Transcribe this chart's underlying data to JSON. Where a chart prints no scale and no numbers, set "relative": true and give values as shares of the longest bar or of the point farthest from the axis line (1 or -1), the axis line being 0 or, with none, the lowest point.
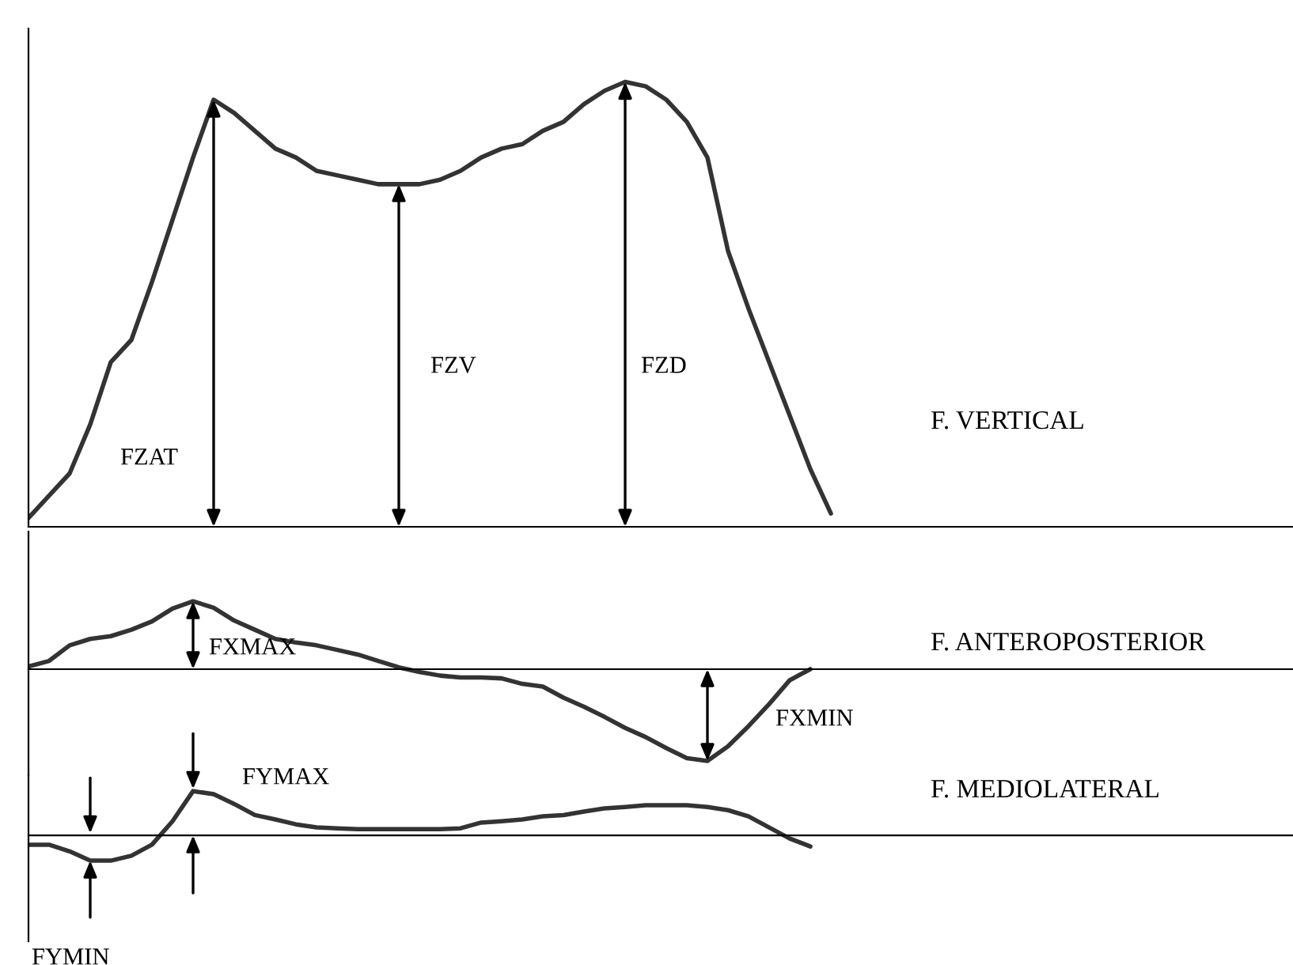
{
  "chart_data": [
    {
      "type": "line",
      "relative": true,
      "ylabel": "F. VERTICAL",
      "annotations": [
        "FZAT",
        "FZV",
        "FZD"
      ],
      "categories": [
        null,
        null,
        null,
        null,
        null,
        null,
        null,
        null,
        null,
        null,
        null,
        null,
        null,
        null,
        null,
        null,
        null,
        null,
        null,
        null,
        null,
        null,
        null,
        null,
        null,
        null,
        null,
        null,
        null,
        null,
        null,
        null,
        null,
        null,
        null,
        null,
        null,
        null,
        null,
        null
      ],
      "series": [
        {
          "color": "#333333",
          "values": [
            0.02,
            0.07,
            0.12,
            0.23,
            0.37,
            0.42,
            0.55,
            0.69,
            0.83,
            0.96,
            0.93,
            0.89,
            0.85,
            0.83,
            0.8,
            0.79,
            0.78,
            0.77,
            0.77,
            0.77,
            0.78,
            0.8,
            0.83,
            0.85,
            0.86,
            0.89,
            0.91,
            0.95,
            0.98,
            1.0,
            0.99,
            0.96,
            0.91,
            0.83,
            0.62,
            0.49,
            0.37,
            0.25,
            0.13,
            0.03
          ]
        }
      ]
    },
    {
      "type": "line",
      "relative": true,
      "ylabel": "F. ANTEROPOSTERIOR",
      "annotations": [
        "FXMAX",
        "FXMIN"
      ],
      "categories": [
        null,
        null,
        null,
        null,
        null,
        null,
        null,
        null,
        null,
        null,
        null,
        null,
        null,
        null,
        null,
        null,
        null,
        null,
        null,
        null,
        null,
        null,
        null,
        null,
        null,
        null,
        null,
        null,
        null,
        null,
        null,
        null,
        null,
        null,
        null,
        null,
        null,
        null,
        null,
        null
      ],
      "series": [
        {
          "color": "#333333",
          "values": [
            0.03,
            0.09,
            0.26,
            0.33,
            0.36,
            0.43,
            0.52,
            0.66,
            0.74,
            0.67,
            0.53,
            0.43,
            0.33,
            0.29,
            0.26,
            0.21,
            0.16,
            0.09,
            0.02,
            -0.03,
            -0.07,
            -0.09,
            -0.09,
            -0.1,
            -0.16,
            -0.19,
            -0.31,
            -0.41,
            -0.52,
            -0.64,
            -0.74,
            -0.86,
            -0.97,
            -1.0,
            -0.84,
            -0.62,
            -0.38,
            -0.12,
            0.0,
            null
          ]
        }
      ]
    },
    {
      "type": "line",
      "relative": true,
      "ylabel": "F. MEDIOLATERAL",
      "annotations": [
        "FYMAX",
        "FYMIN"
      ],
      "categories": [
        null,
        null,
        null,
        null,
        null,
        null,
        null,
        null,
        null,
        null,
        null,
        null,
        null,
        null,
        null,
        null,
        null,
        null,
        null,
        null,
        null,
        null,
        null,
        null,
        null,
        null,
        null,
        null,
        null,
        null,
        null,
        null,
        null,
        null,
        null,
        null,
        null,
        null,
        null,
        null
      ],
      "series": [
        {
          "color": "#333333",
          "values": [
            -0.21,
            -0.21,
            -0.36,
            -0.57,
            -0.57,
            -0.46,
            -0.21,
            0.32,
            1.0,
            0.93,
            0.71,
            0.46,
            0.36,
            0.25,
            0.18,
            0.16,
            0.14,
            0.14,
            0.14,
            0.14,
            0.14,
            0.16,
            0.29,
            0.32,
            0.36,
            0.43,
            0.46,
            0.54,
            0.61,
            0.64,
            0.68,
            0.68,
            0.68,
            0.64,
            0.57,
            0.43,
            0.18,
            -0.07,
            -0.25,
            null
          ]
        }
      ]
    }
  ]
}
